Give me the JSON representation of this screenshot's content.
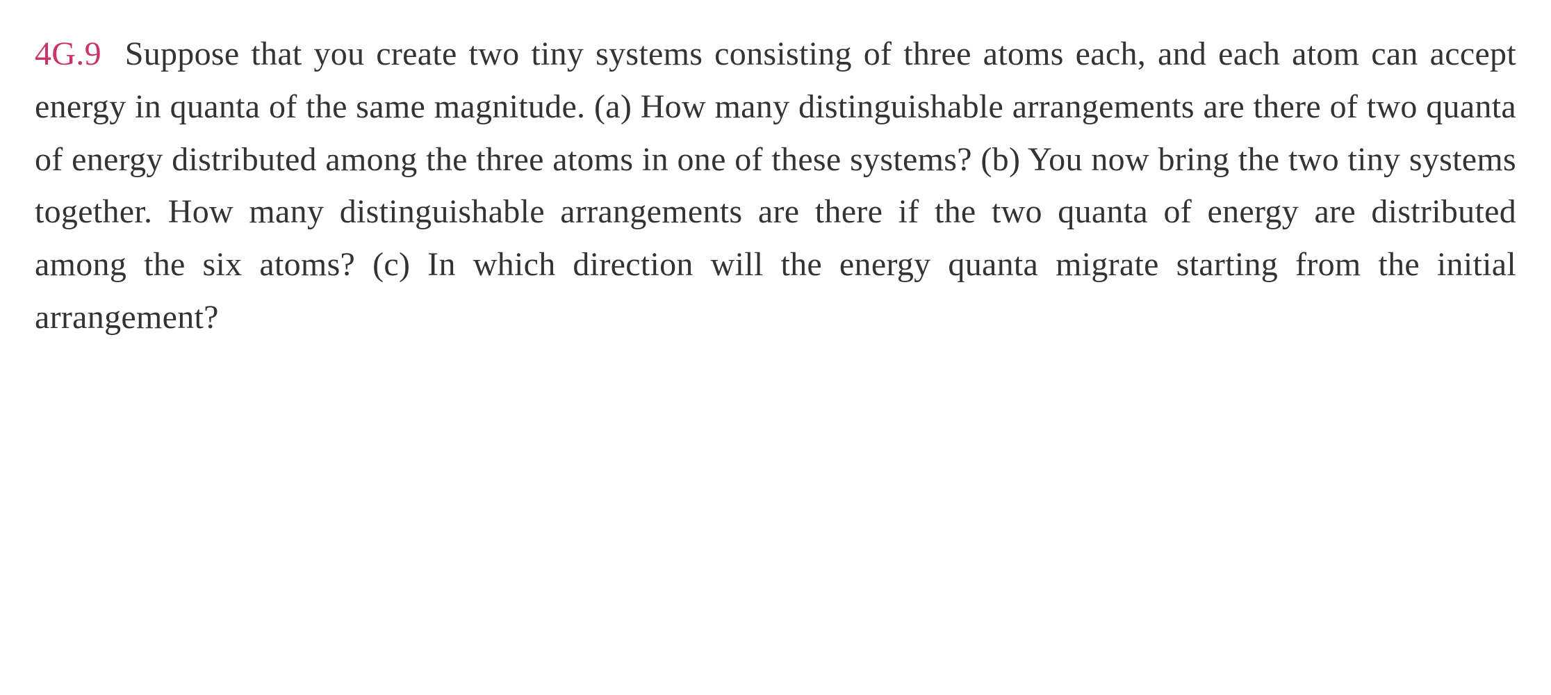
{
  "problem": {
    "number": "4G.9",
    "text": "Suppose that you create two tiny systems consisting of three atoms each, and each atom can accept energy in quanta of the same magnitude. (a) How many distinguishable arrangements are there of two quanta of energy distributed among the three atoms in one of these systems? (b) You now bring the two tiny systems together. How many distinguishable arrangements are there if the two quanta of energy are distributed among the six atoms? (c) In which direction will the energy quanta migrate starting from the initial arrangement?"
  },
  "styling": {
    "number_color": "#c9336a",
    "text_color": "#333333",
    "background_color": "#ffffff",
    "font_family": "Georgia, serif",
    "font_size": 48,
    "line_height": 1.58
  }
}
